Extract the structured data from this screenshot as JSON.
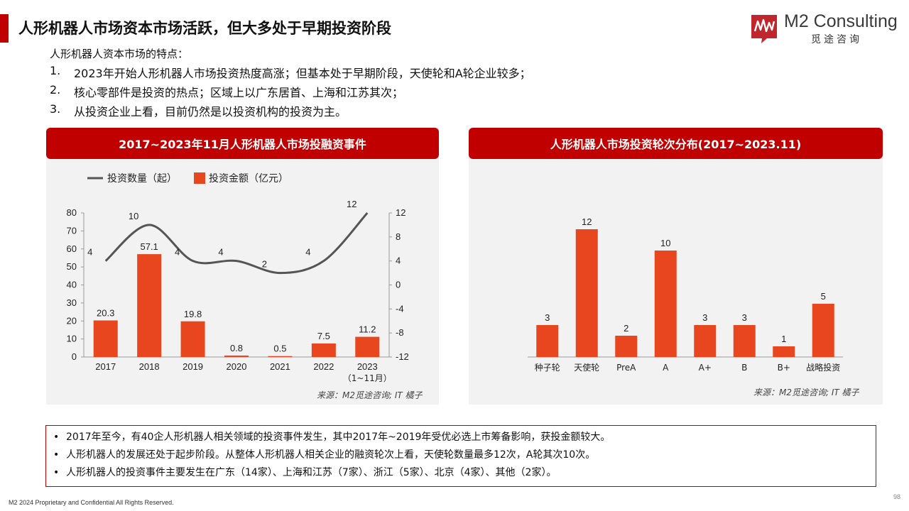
{
  "header": {
    "title": "人形机器人市场资本市场活跃，但大多处于早期投资阶段",
    "brand_name": "M2 Consulting",
    "brand_sub": "觅途咨询"
  },
  "intro": {
    "label": "人形机器人资本市场的特点：",
    "points": [
      {
        "num": "1.",
        "text": "2023年开始人形机器人市场投资热度高涨；但基本处于早期阶段，天使轮和A轮企业较多；"
      },
      {
        "num": "2.",
        "text": "核心零部件是投资的热点；区域上以广东居首、上海和江苏其次；"
      },
      {
        "num": "3.",
        "text": "从投资企业上看，目前仍然是以投资机构的投资为主。"
      }
    ]
  },
  "colors": {
    "brand_red": "#c00000",
    "bar_orange": "#e8461e",
    "line_gray": "#555555",
    "panel_bg": "#f2f2f2"
  },
  "chart_data": [
    {
      "type": "bar+line",
      "title": "2017~2023年11月人形机器人市场投融资事件",
      "categories": [
        "2017",
        "2018",
        "2019",
        "2020",
        "2021",
        "2022",
        "2023"
      ],
      "category_sub": {
        "2023": "（1~11月）"
      },
      "series": [
        {
          "name": "投资金额（亿元）",
          "kind": "bar",
          "axis": "left",
          "values": [
            20.3,
            57.1,
            19.8,
            0.8,
            0.5,
            7.5,
            11.2
          ],
          "labels": [
            "20.3",
            "57.1",
            "19.8",
            "0.8",
            "0.5",
            "7.5",
            "11.2"
          ]
        },
        {
          "name": "投资数量（起）",
          "kind": "line",
          "axis": "right",
          "values": [
            4,
            10,
            4,
            4,
            2,
            4,
            12
          ],
          "labels": [
            "4",
            "10",
            "4",
            "4",
            "2",
            "4",
            "12"
          ]
        }
      ],
      "y_left": {
        "min": 0,
        "max": 80,
        "ticks": [
          "0",
          "10",
          "20",
          "30",
          "40",
          "50",
          "60",
          "70",
          "80"
        ]
      },
      "y_right": {
        "min": -12,
        "max": 12,
        "ticks": [
          "-12",
          "-8",
          "-4",
          "0",
          "4",
          "8",
          "12"
        ]
      },
      "legend_position": "top-left",
      "source": "来源：M2觅途咨询; IT 橘子"
    },
    {
      "type": "bar",
      "title": "人形机器人市场投资轮次分布(2017~2023.11)",
      "categories": [
        "种子轮",
        "天使轮",
        "PreA",
        "A",
        "A+",
        "B",
        "B+",
        "战略投资"
      ],
      "values": [
        3,
        12,
        2,
        10,
        3,
        3,
        1,
        5
      ],
      "labels": [
        "3",
        "12",
        "2",
        "10",
        "3",
        "3",
        "1",
        "5"
      ],
      "ylim": [
        0,
        14
      ],
      "source": "来源：M2觅途咨询; IT 橘子"
    }
  ],
  "notes": [
    "2017年至今，有40企人形机器人相关领域的投资事件发生，其中2017年~2019年受优必选上市筹备影响，获投金额较大。",
    "人形机器人的发展还处于起步阶段。从整体人形机器人相关企业的融资轮次上看，天使轮数量最多12次，A轮其次10次。",
    "人形机器人的投资事件主要发生在广东（14家）、上海和江苏（7家）、浙江（5家）、北京（4家）、其他（2家）。"
  ],
  "footer": {
    "copyright": "M2  2024 Proprietary and Confidential All Rights Reserved.",
    "page": "98"
  }
}
